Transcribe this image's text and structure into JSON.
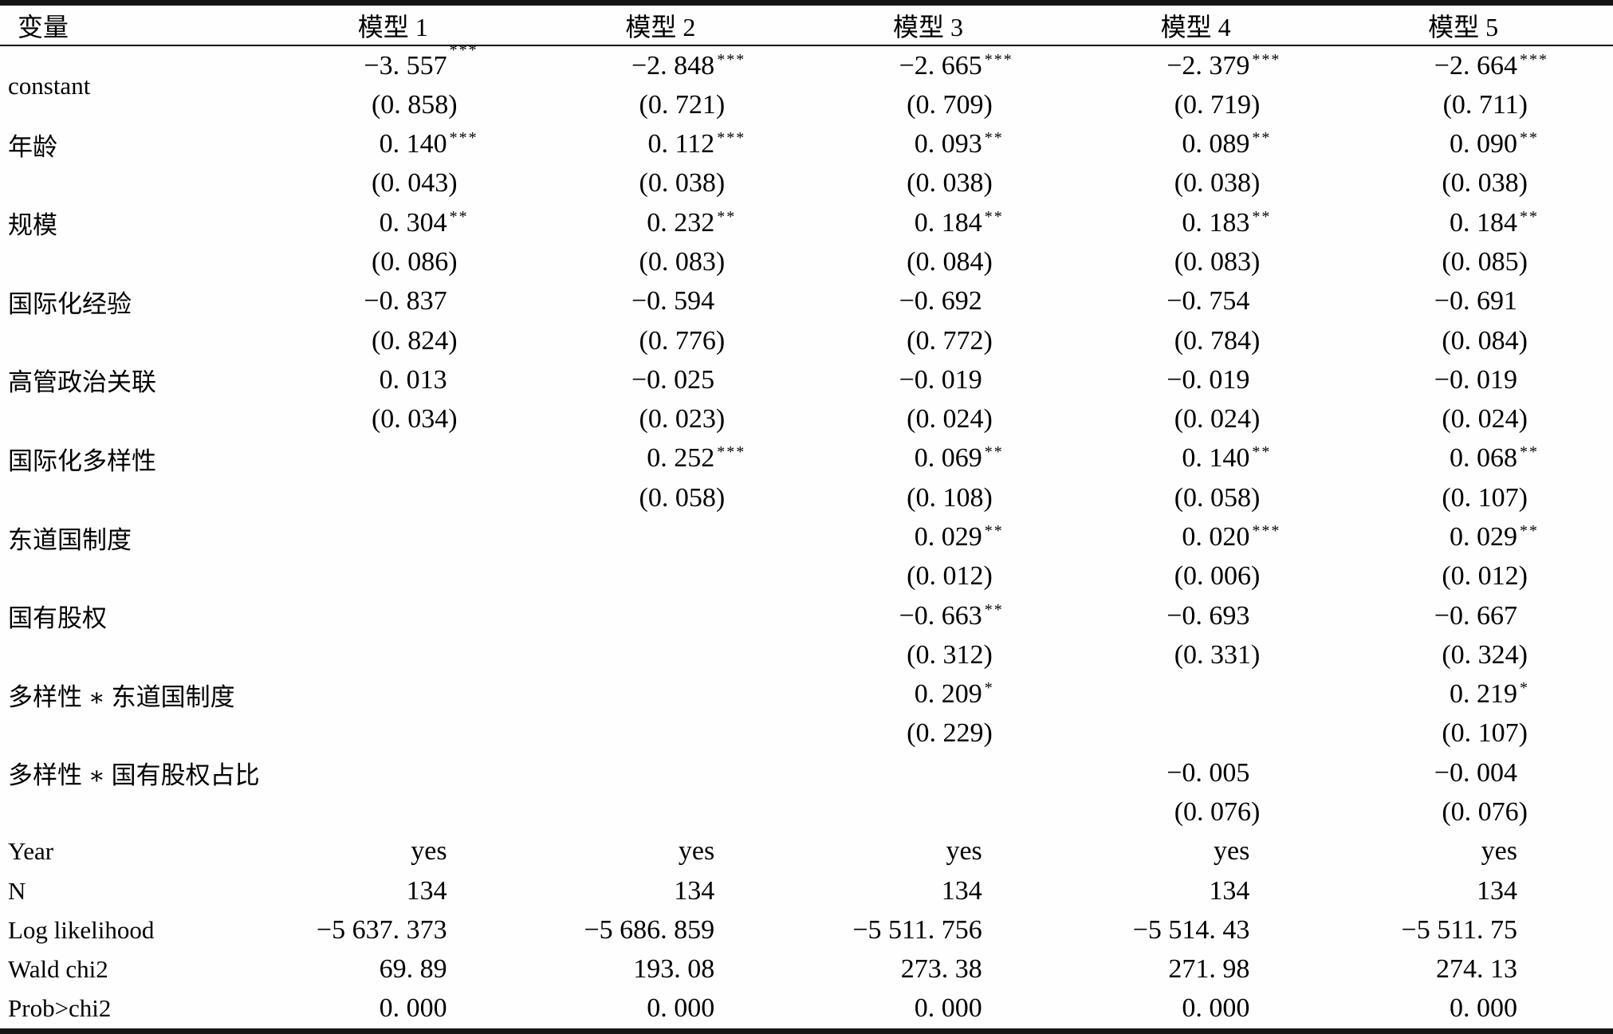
{
  "table": {
    "header": {
      "variable_col": "变量",
      "model_cols": [
        "模型 1",
        "模型 2",
        "模型 3",
        "模型 4",
        "模型 5"
      ]
    },
    "variables": [
      {
        "label": "constant",
        "center_label": true,
        "coef": [
          "−3. 557",
          "−2. 848",
          "−2. 665",
          "−2. 379",
          "−2. 664"
        ],
        "stars": [
          "***",
          "***",
          "***",
          "***",
          "***"
        ],
        "stars_high": [
          true,
          false,
          false,
          false,
          false
        ],
        "se": [
          "(0. 858)",
          "(0. 721)",
          "(0. 709)",
          "(0. 719)",
          "(0. 711)"
        ]
      },
      {
        "label": "年龄",
        "coef": [
          "0. 140",
          "0. 112",
          "0. 093",
          "0. 089",
          "0. 090"
        ],
        "stars": [
          "***",
          "***",
          "**",
          "**",
          "**"
        ],
        "se": [
          "(0. 043)",
          "(0. 038)",
          "(0. 038)",
          "(0. 038)",
          "(0. 038)"
        ]
      },
      {
        "label": "规模",
        "coef": [
          "0. 304",
          "0. 232",
          "0. 184",
          "0. 183",
          "0. 184"
        ],
        "stars": [
          "**",
          "**",
          "**",
          "**",
          "**"
        ],
        "se": [
          "(0. 086)",
          "(0. 083)",
          "(0. 084)",
          "(0. 083)",
          "(0. 085)"
        ]
      },
      {
        "label": "国际化经验",
        "coef": [
          "−0. 837",
          "−0. 594",
          "−0. 692",
          "−0. 754",
          "−0. 691"
        ],
        "stars": [
          "",
          "",
          "",
          "",
          ""
        ],
        "se": [
          "(0. 824)",
          "(0. 776)",
          "(0. 772)",
          "(0. 784)",
          "(0. 084)"
        ]
      },
      {
        "label": "高管政治关联",
        "coef": [
          "0. 013",
          "−0. 025",
          "−0. 019",
          "−0. 019",
          "−0. 019"
        ],
        "stars": [
          "",
          "",
          "",
          "",
          ""
        ],
        "se": [
          "(0. 034)",
          "(0. 023)",
          "(0. 024)",
          "(0. 024)",
          "(0. 024)"
        ]
      },
      {
        "label": "国际化多样性",
        "coef": [
          "",
          "0. 252",
          "0. 069",
          "0. 140",
          "0. 068"
        ],
        "stars": [
          "",
          "***",
          "**",
          "**",
          "**"
        ],
        "se": [
          "",
          "(0. 058)",
          "(0. 108)",
          "(0. 058)",
          "(0. 107)"
        ]
      },
      {
        "label": "东道国制度",
        "coef": [
          "",
          "",
          "0. 029",
          "0. 020",
          "0. 029"
        ],
        "stars": [
          "",
          "",
          "**",
          "***",
          "**"
        ],
        "se": [
          "",
          "",
          "(0. 012)",
          "(0. 006)",
          "(0. 012)"
        ]
      },
      {
        "label": "国有股权",
        "coef": [
          "",
          "",
          "−0. 663",
          "−0. 693",
          "−0. 667"
        ],
        "stars": [
          "",
          "",
          "**",
          "",
          ""
        ],
        "se": [
          "",
          "",
          "(0. 312)",
          "(0. 331)",
          "(0. 324)"
        ]
      },
      {
        "label": "多样性 ∗ 东道国制度",
        "coef": [
          "",
          "",
          "0. 209",
          "",
          "0. 219"
        ],
        "stars": [
          "",
          "",
          "*",
          "",
          "*"
        ],
        "se": [
          "",
          "",
          "(0. 229)",
          "",
          "(0. 107)"
        ]
      },
      {
        "label": "多样性 ∗ 国有股权占比",
        "coef": [
          "",
          "",
          "",
          "−0. 005",
          "−0. 004"
        ],
        "stars": [
          "",
          "",
          "",
          "",
          ""
        ],
        "se": [
          "",
          "",
          "",
          "(0. 076)",
          "(0. 076)"
        ]
      }
    ],
    "stats": [
      {
        "label": "Year",
        "values": [
          "yes",
          "yes",
          "yes",
          "yes",
          "yes"
        ]
      },
      {
        "label": "N",
        "values": [
          "134",
          "134",
          "134",
          "134",
          "134"
        ]
      },
      {
        "label": "Log likelihood",
        "values": [
          "−5 637. 373",
          "−5 686. 859",
          "−5 511. 756",
          "−5 514. 43",
          "−5 511. 75"
        ]
      },
      {
        "label": "Wald chi2",
        "values": [
          "69. 89",
          "193. 08",
          "273. 38",
          "271. 98",
          "274. 13"
        ]
      },
      {
        "label": "Prob>chi2",
        "values": [
          "0. 000",
          "0. 000",
          "0. 000",
          "0. 000",
          "0. 000"
        ]
      }
    ]
  }
}
